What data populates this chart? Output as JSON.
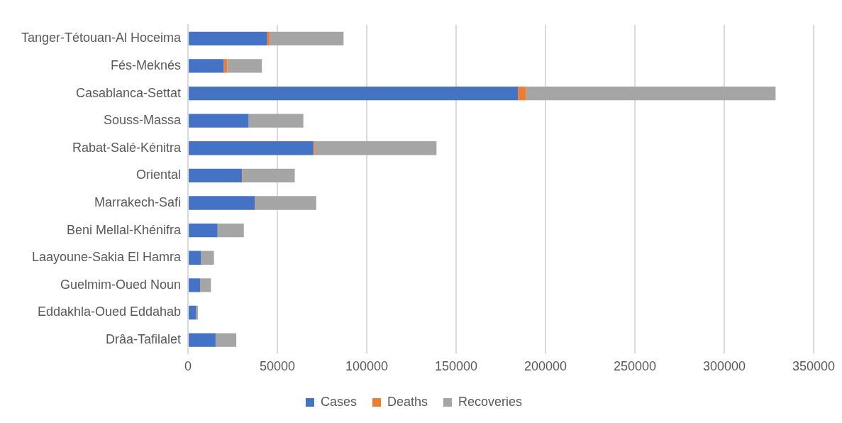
{
  "chart_data": {
    "type": "bar",
    "orientation": "horizontal",
    "stacked": true,
    "categories": [
      "Tanger-Tétouan-Al Hoceima",
      "Fés-Meknés",
      "Casablanca-Settat",
      "Souss-Massa",
      "Rabat-Salé-Kénitra",
      "Oriental",
      "Marrakech-Safi",
      "Beni Mellal-Khénifra",
      "Laayoune-Sakia El Hamra",
      "Guelmim-Oued Noun",
      "Eddakhla-Oued Eddahab",
      "Drâa-Tafilalet"
    ],
    "series": [
      {
        "name": "Cases",
        "color": "#4472c4",
        "values": [
          44300,
          20000,
          184600,
          33900,
          70100,
          30100,
          37400,
          16500,
          7200,
          6700,
          4500,
          15400
        ]
      },
      {
        "name": "Deaths",
        "color": "#ed7d31",
        "values": [
          1400,
          1900,
          4400,
          null,
          800,
          300,
          300,
          null,
          null,
          null,
          null,
          null
        ]
      },
      {
        "name": "Recoveries",
        "color": "#a5a5a5",
        "values": [
          41300,
          19400,
          139700,
          30600,
          68100,
          29300,
          34000,
          14700,
          7300,
          6100,
          1000,
          11600
        ]
      }
    ],
    "xlim": [
      0,
      350000
    ],
    "xticks": [
      0,
      50000,
      100000,
      150000,
      200000,
      250000,
      300000,
      350000
    ],
    "grid": "x",
    "legend": "bottom"
  }
}
